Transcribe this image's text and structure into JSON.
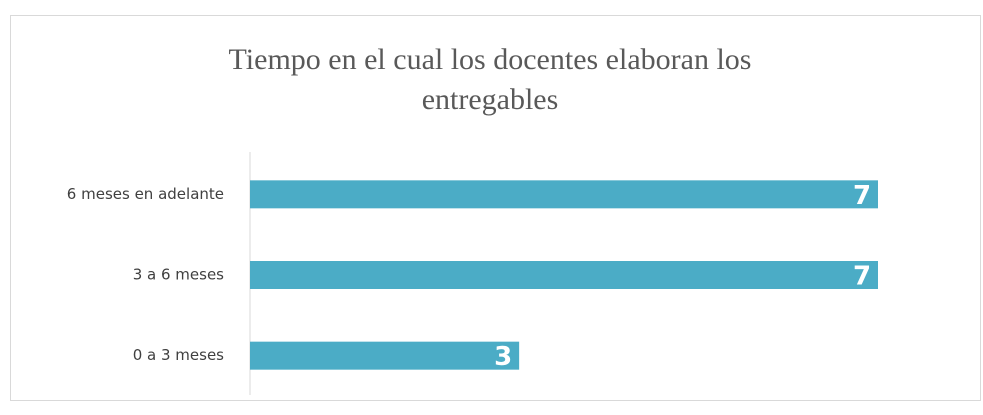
{
  "chart_data": {
    "type": "bar",
    "orientation": "horizontal",
    "title": "Tiempo en el cual los docentes elaboran los entregables",
    "categories": [
      "6 meses en adelante",
      "3 a 6 meses",
      "0 a 3 meses"
    ],
    "values": [
      7,
      7,
      3
    ],
    "color": "#4bacc6"
  }
}
